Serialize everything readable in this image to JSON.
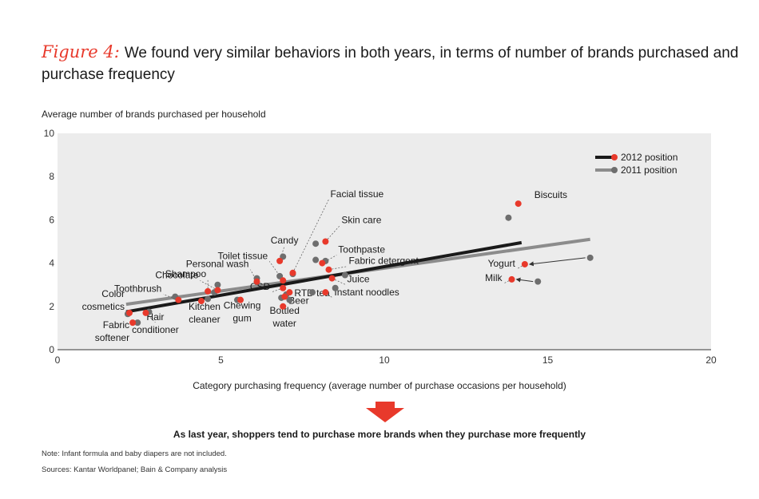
{
  "header": {
    "figure_label": "Figure 4:",
    "title": "We found very similar behaviors in both years, in terms of number of brands purchased and purchase frequency"
  },
  "colors": {
    "accent": "#e8392b",
    "series_2012": "#e8392b",
    "series_2011": "#6e6e6e",
    "line_2012": "#1a1a1a",
    "line_2011": "#8c8c8c",
    "plot_bg": "#ececec"
  },
  "chart_data": {
    "type": "scatter",
    "xlabel": "Category purchasing frequency (average number of purchase occasions per household)",
    "ylabel": "Average number of brands purchased per household",
    "xlim": [
      0,
      20
    ],
    "ylim": [
      0,
      10
    ],
    "xticks": [
      "0",
      "5",
      "10",
      "15",
      "20"
    ],
    "yticks": [
      "0",
      "2",
      "4",
      "6",
      "8",
      "10"
    ],
    "legend": {
      "position": "top-right",
      "entries": [
        "2012 position",
        "2011 position"
      ]
    },
    "grid": false,
    "trendlines": [
      {
        "series": "2012 position",
        "from": [
          2.1,
          1.75
        ],
        "to": [
          14.2,
          4.95
        ]
      },
      {
        "series": "2011 position",
        "from": [
          2.1,
          2.1
        ],
        "to": [
          16.3,
          5.1
        ]
      }
    ],
    "series": [
      {
        "name": "2012 position",
        "points": [
          {
            "label": "Biscuits",
            "x": 14.1,
            "y": 6.75
          },
          {
            "label": "Yogurt",
            "x": 14.3,
            "y": 3.95
          },
          {
            "label": "Milk",
            "x": 13.9,
            "y": 3.25
          },
          {
            "label": "Facial tissue",
            "x": 7.2,
            "y": 3.55
          },
          {
            "label": "Skin care",
            "x": 8.2,
            "y": 5.0
          },
          {
            "label": "Toothpaste",
            "x": 8.1,
            "y": 4.0
          },
          {
            "label": "Fabric detergent",
            "x": 8.3,
            "y": 3.7
          },
          {
            "label": "Candy",
            "x": 6.8,
            "y": 4.1
          },
          {
            "label": "Toilet tissue",
            "x": 6.9,
            "y": 3.2
          },
          {
            "label": "Personal wash",
            "x": 6.1,
            "y": 3.15
          },
          {
            "label": "Shampoo",
            "x": 4.6,
            "y": 2.7
          },
          {
            "label": "Chocolate",
            "x": 4.9,
            "y": 2.75
          },
          {
            "label": "Toothbrush",
            "x": 3.7,
            "y": 2.3
          },
          {
            "label": "Color cosmetics",
            "x": 2.2,
            "y": 1.7
          },
          {
            "label": "Fabric softener",
            "x": 2.3,
            "y": 1.25
          },
          {
            "label": "Hair conditioner",
            "x": 2.7,
            "y": 1.7
          },
          {
            "label": "Kitchen cleaner",
            "x": 4.4,
            "y": 2.25
          },
          {
            "label": "Chewing gum",
            "x": 5.6,
            "y": 2.3
          },
          {
            "label": "CSD",
            "x": 6.9,
            "y": 2.85
          },
          {
            "label": "Bottled water",
            "x": 6.9,
            "y": 2.0
          },
          {
            "label": "Beer",
            "x": 6.95,
            "y": 2.45
          },
          {
            "label": "RTD tea",
            "x": 7.1,
            "y": 2.65
          },
          {
            "label": "Juice",
            "x": 8.4,
            "y": 3.3
          },
          {
            "label": "Instant noodles",
            "x": 8.2,
            "y": 2.65
          }
        ]
      },
      {
        "name": "2011 position",
        "points": [
          {
            "label": "Biscuits",
            "x": 13.8,
            "y": 6.1
          },
          {
            "label": "Yogurt",
            "x": 16.3,
            "y": 4.25
          },
          {
            "label": "Milk",
            "x": 14.7,
            "y": 3.15
          },
          {
            "label": "Facial tissue",
            "x": 6.8,
            "y": 3.4
          },
          {
            "label": "Skin care",
            "x": 7.9,
            "y": 4.9
          },
          {
            "label": "Toothpaste",
            "x": 7.9,
            "y": 4.15
          },
          {
            "label": "Fabric detergent",
            "x": 8.2,
            "y": 4.1
          },
          {
            "label": "Candy",
            "x": 6.9,
            "y": 4.3
          },
          {
            "label": "Toilet tissue",
            "x": 7.2,
            "y": 3.5
          },
          {
            "label": "Personal wash",
            "x": 6.1,
            "y": 3.3
          },
          {
            "label": "Shampoo",
            "x": 4.9,
            "y": 3.0
          },
          {
            "label": "Chocolate",
            "x": 4.8,
            "y": 2.65
          },
          {
            "label": "Toothbrush",
            "x": 3.6,
            "y": 2.45
          },
          {
            "label": "Color cosmetics",
            "x": 2.15,
            "y": 1.65
          },
          {
            "label": "Fabric softener",
            "x": 2.45,
            "y": 1.25
          },
          {
            "label": "Hair conditioner",
            "x": 2.8,
            "y": 1.75
          },
          {
            "label": "Kitchen cleaner",
            "x": 4.6,
            "y": 2.35
          },
          {
            "label": "Chewing gum",
            "x": 5.5,
            "y": 2.3
          },
          {
            "label": "CSD",
            "x": 7.0,
            "y": 2.55
          },
          {
            "label": "Bottled water",
            "x": 7.1,
            "y": 2.3
          },
          {
            "label": "Beer",
            "x": 6.85,
            "y": 2.4
          },
          {
            "label": "RTD tea",
            "x": 7.8,
            "y": 2.65
          },
          {
            "label": "Juice",
            "x": 8.8,
            "y": 3.45
          },
          {
            "label": "Instant noodles",
            "x": 8.5,
            "y": 2.85
          }
        ]
      }
    ],
    "category_labels": [
      {
        "lines": [
          "Biscuits"
        ],
        "anchor": "start"
      },
      {
        "lines": [
          "Yogurt"
        ],
        "anchor": "end"
      },
      {
        "lines": [
          "Milk"
        ],
        "anchor": "end"
      },
      {
        "lines": [
          "Facial tissue"
        ],
        "anchor": "start"
      },
      {
        "lines": [
          "Skin care"
        ],
        "anchor": "start"
      },
      {
        "lines": [
          "Toothpaste"
        ],
        "anchor": "start"
      },
      {
        "lines": [
          "Fabric detergent"
        ],
        "anchor": "start"
      },
      {
        "lines": [
          "Candy"
        ],
        "anchor": "middle"
      },
      {
        "lines": [
          "Toilet tissue"
        ],
        "anchor": "end"
      },
      {
        "lines": [
          "Personal wash"
        ],
        "anchor": "end"
      },
      {
        "lines": [
          "Shampoo"
        ],
        "anchor": "end"
      },
      {
        "lines": [
          "Chocolate"
        ],
        "anchor": "end"
      },
      {
        "lines": [
          "Toothbrush"
        ],
        "anchor": "end"
      },
      {
        "lines": [
          "Color",
          "cosmetics"
        ],
        "anchor": "end"
      },
      {
        "lines": [
          "Fabric",
          "softener"
        ],
        "anchor": "end"
      },
      {
        "lines": [
          "Hair",
          "conditioner"
        ],
        "anchor": "middle"
      },
      {
        "lines": [
          "Kitchen",
          "cleaner"
        ],
        "anchor": "middle"
      },
      {
        "lines": [
          "Chewing",
          "gum"
        ],
        "anchor": "middle"
      },
      {
        "lines": [
          "CSD"
        ],
        "anchor": "end"
      },
      {
        "lines": [
          "Bottled",
          "water"
        ],
        "anchor": "middle"
      },
      {
        "lines": [
          "Beer"
        ],
        "anchor": "start"
      },
      {
        "lines": [
          "RTD tea"
        ],
        "anchor": "start"
      },
      {
        "lines": [
          "Juice"
        ],
        "anchor": "start"
      },
      {
        "lines": [
          "Instant noodles"
        ],
        "anchor": "start"
      }
    ]
  },
  "footer": {
    "conclusion": "As last year, shoppers tend to purchase more brands when they purchase more frequently",
    "note": "Note: Infant formula and baby diapers are not included.",
    "sources": "Sources: Kantar Worldpanel; Bain & Company analysis"
  }
}
